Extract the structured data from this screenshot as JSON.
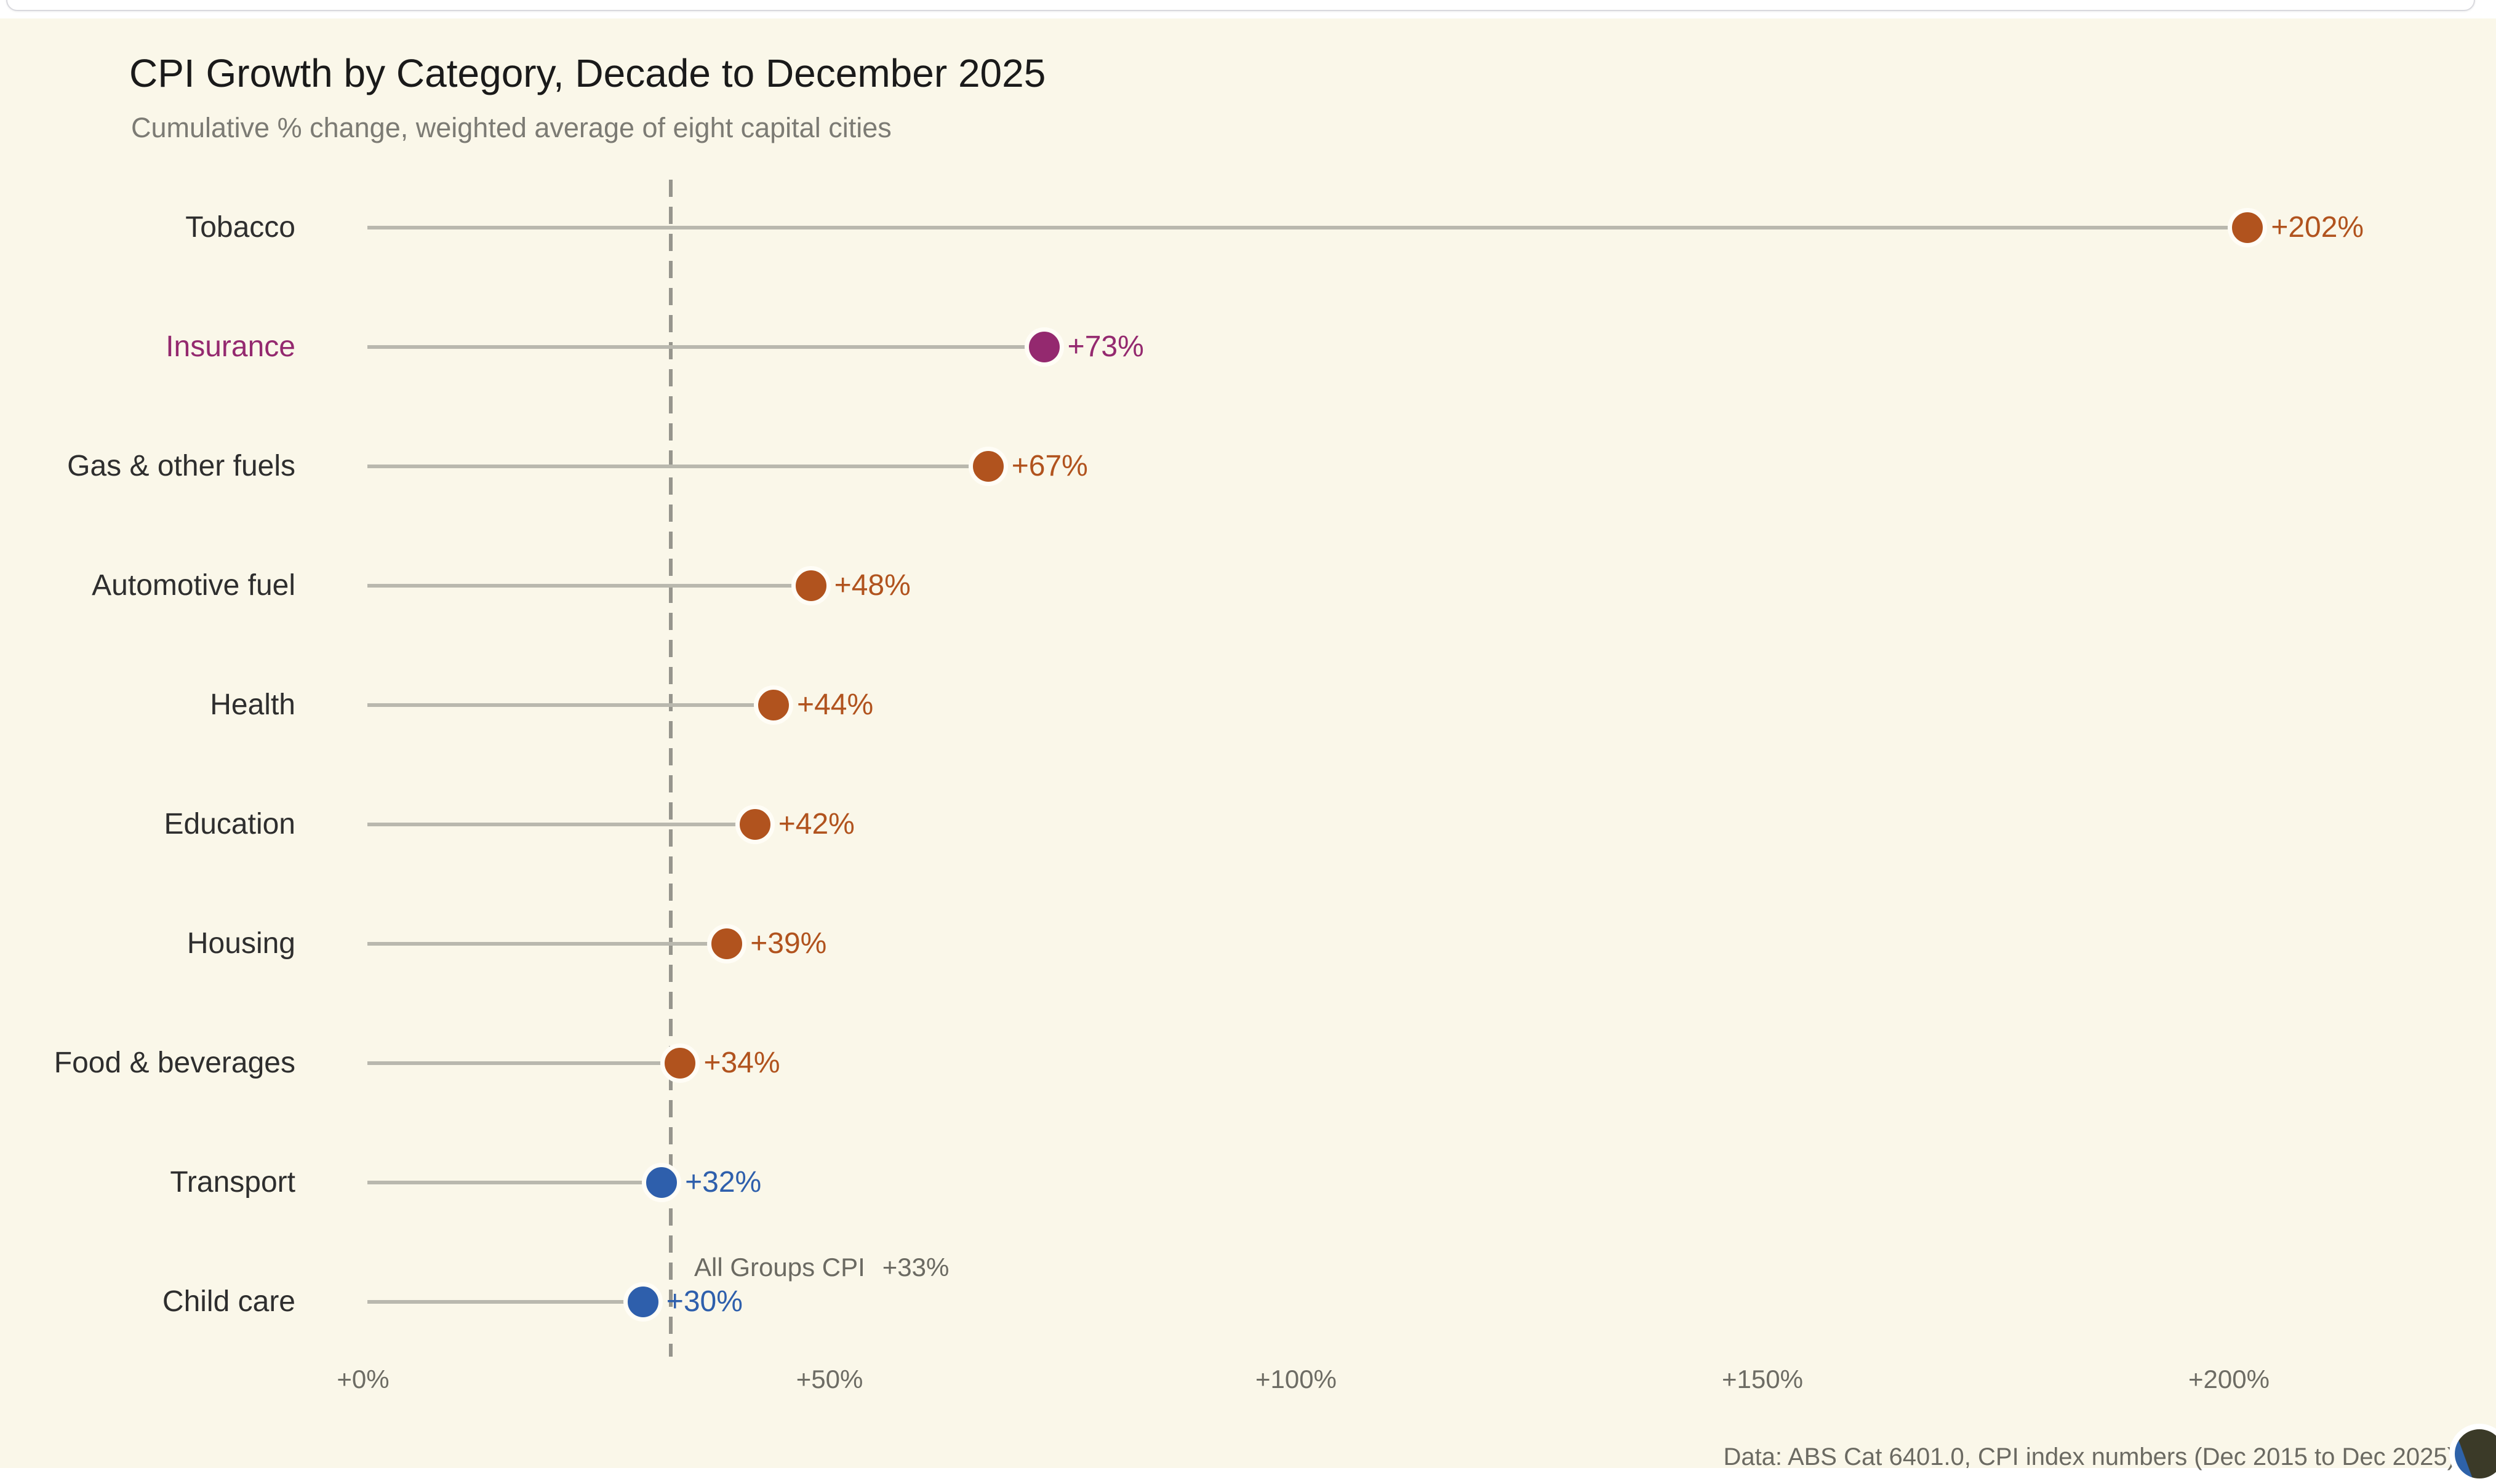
{
  "header": {
    "title": "CPI Growth by Category, Decade to December 2025",
    "subtitle": "Cumulative % change, weighted average of eight capital cities"
  },
  "footer": {
    "source": "Data: ABS Cat 6401.0, CPI index numbers (Dec 2015 to Dec 2025)"
  },
  "colors": {
    "background": "#faf7e9",
    "orange": "#b1531e",
    "purple": "#94296f",
    "blue": "#2e5fac",
    "stem_gray": "#b9b8ae",
    "reference_line_gray": "#96958d",
    "category_text": "#2e2e2e",
    "axis_text": "#6d6c64"
  },
  "chart_data": {
    "type": "lollipop",
    "title": "CPI Growth by Category, Decade to December 2025",
    "subtitle": "Cumulative % change, weighted average of eight capital cities",
    "xlabel": "",
    "ylabel": "",
    "xlim": [
      0,
      210
    ],
    "grid": false,
    "legend": false,
    "categories": [
      "Tobacco",
      "Insurance",
      "Gas & other fuels",
      "Automotive fuel",
      "Health",
      "Education",
      "Housing",
      "Food & beverages",
      "Transport",
      "Child care"
    ],
    "values": [
      202,
      73,
      67,
      48,
      44,
      42,
      39,
      34,
      32,
      30
    ],
    "items": [
      {
        "category": "Tobacco",
        "value": 202,
        "display": "+202%",
        "color": "#b1531e",
        "label_color": "#2e2e2e"
      },
      {
        "category": "Insurance",
        "value": 73,
        "display": "+73%",
        "color": "#94296f",
        "label_color": "#94296f"
      },
      {
        "category": "Gas & other fuels",
        "value": 67,
        "display": "+67%",
        "color": "#b1531e",
        "label_color": "#2e2e2e"
      },
      {
        "category": "Automotive fuel",
        "value": 48,
        "display": "+48%",
        "color": "#b1531e",
        "label_color": "#2e2e2e"
      },
      {
        "category": "Health",
        "value": 44,
        "display": "+44%",
        "color": "#b1531e",
        "label_color": "#2e2e2e"
      },
      {
        "category": "Education",
        "value": 42,
        "display": "+42%",
        "color": "#b1531e",
        "label_color": "#2e2e2e"
      },
      {
        "category": "Housing",
        "value": 39,
        "display": "+39%",
        "color": "#b1531e",
        "label_color": "#2e2e2e"
      },
      {
        "category": "Food & beverages",
        "value": 34,
        "display": "+34%",
        "color": "#b1531e",
        "label_color": "#2e2e2e"
      },
      {
        "category": "Transport",
        "value": 32,
        "display": "+32%",
        "color": "#2e5fac",
        "label_color": "#2e2e2e"
      },
      {
        "category": "Child care",
        "value": 30,
        "display": "+30%",
        "color": "#2e5fac",
        "label_color": "#2e2e2e"
      }
    ],
    "reference_line": {
      "label": "All Groups CPI",
      "value_label": "+33%",
      "value": 33
    },
    "x_axis": {
      "ticks": [
        {
          "label": "+0%",
          "value": 0
        },
        {
          "label": "+50%",
          "value": 50
        },
        {
          "label": "+100%",
          "value": 100
        },
        {
          "label": "+150%",
          "value": 150
        },
        {
          "label": "+200%",
          "value": 200
        }
      ]
    }
  }
}
